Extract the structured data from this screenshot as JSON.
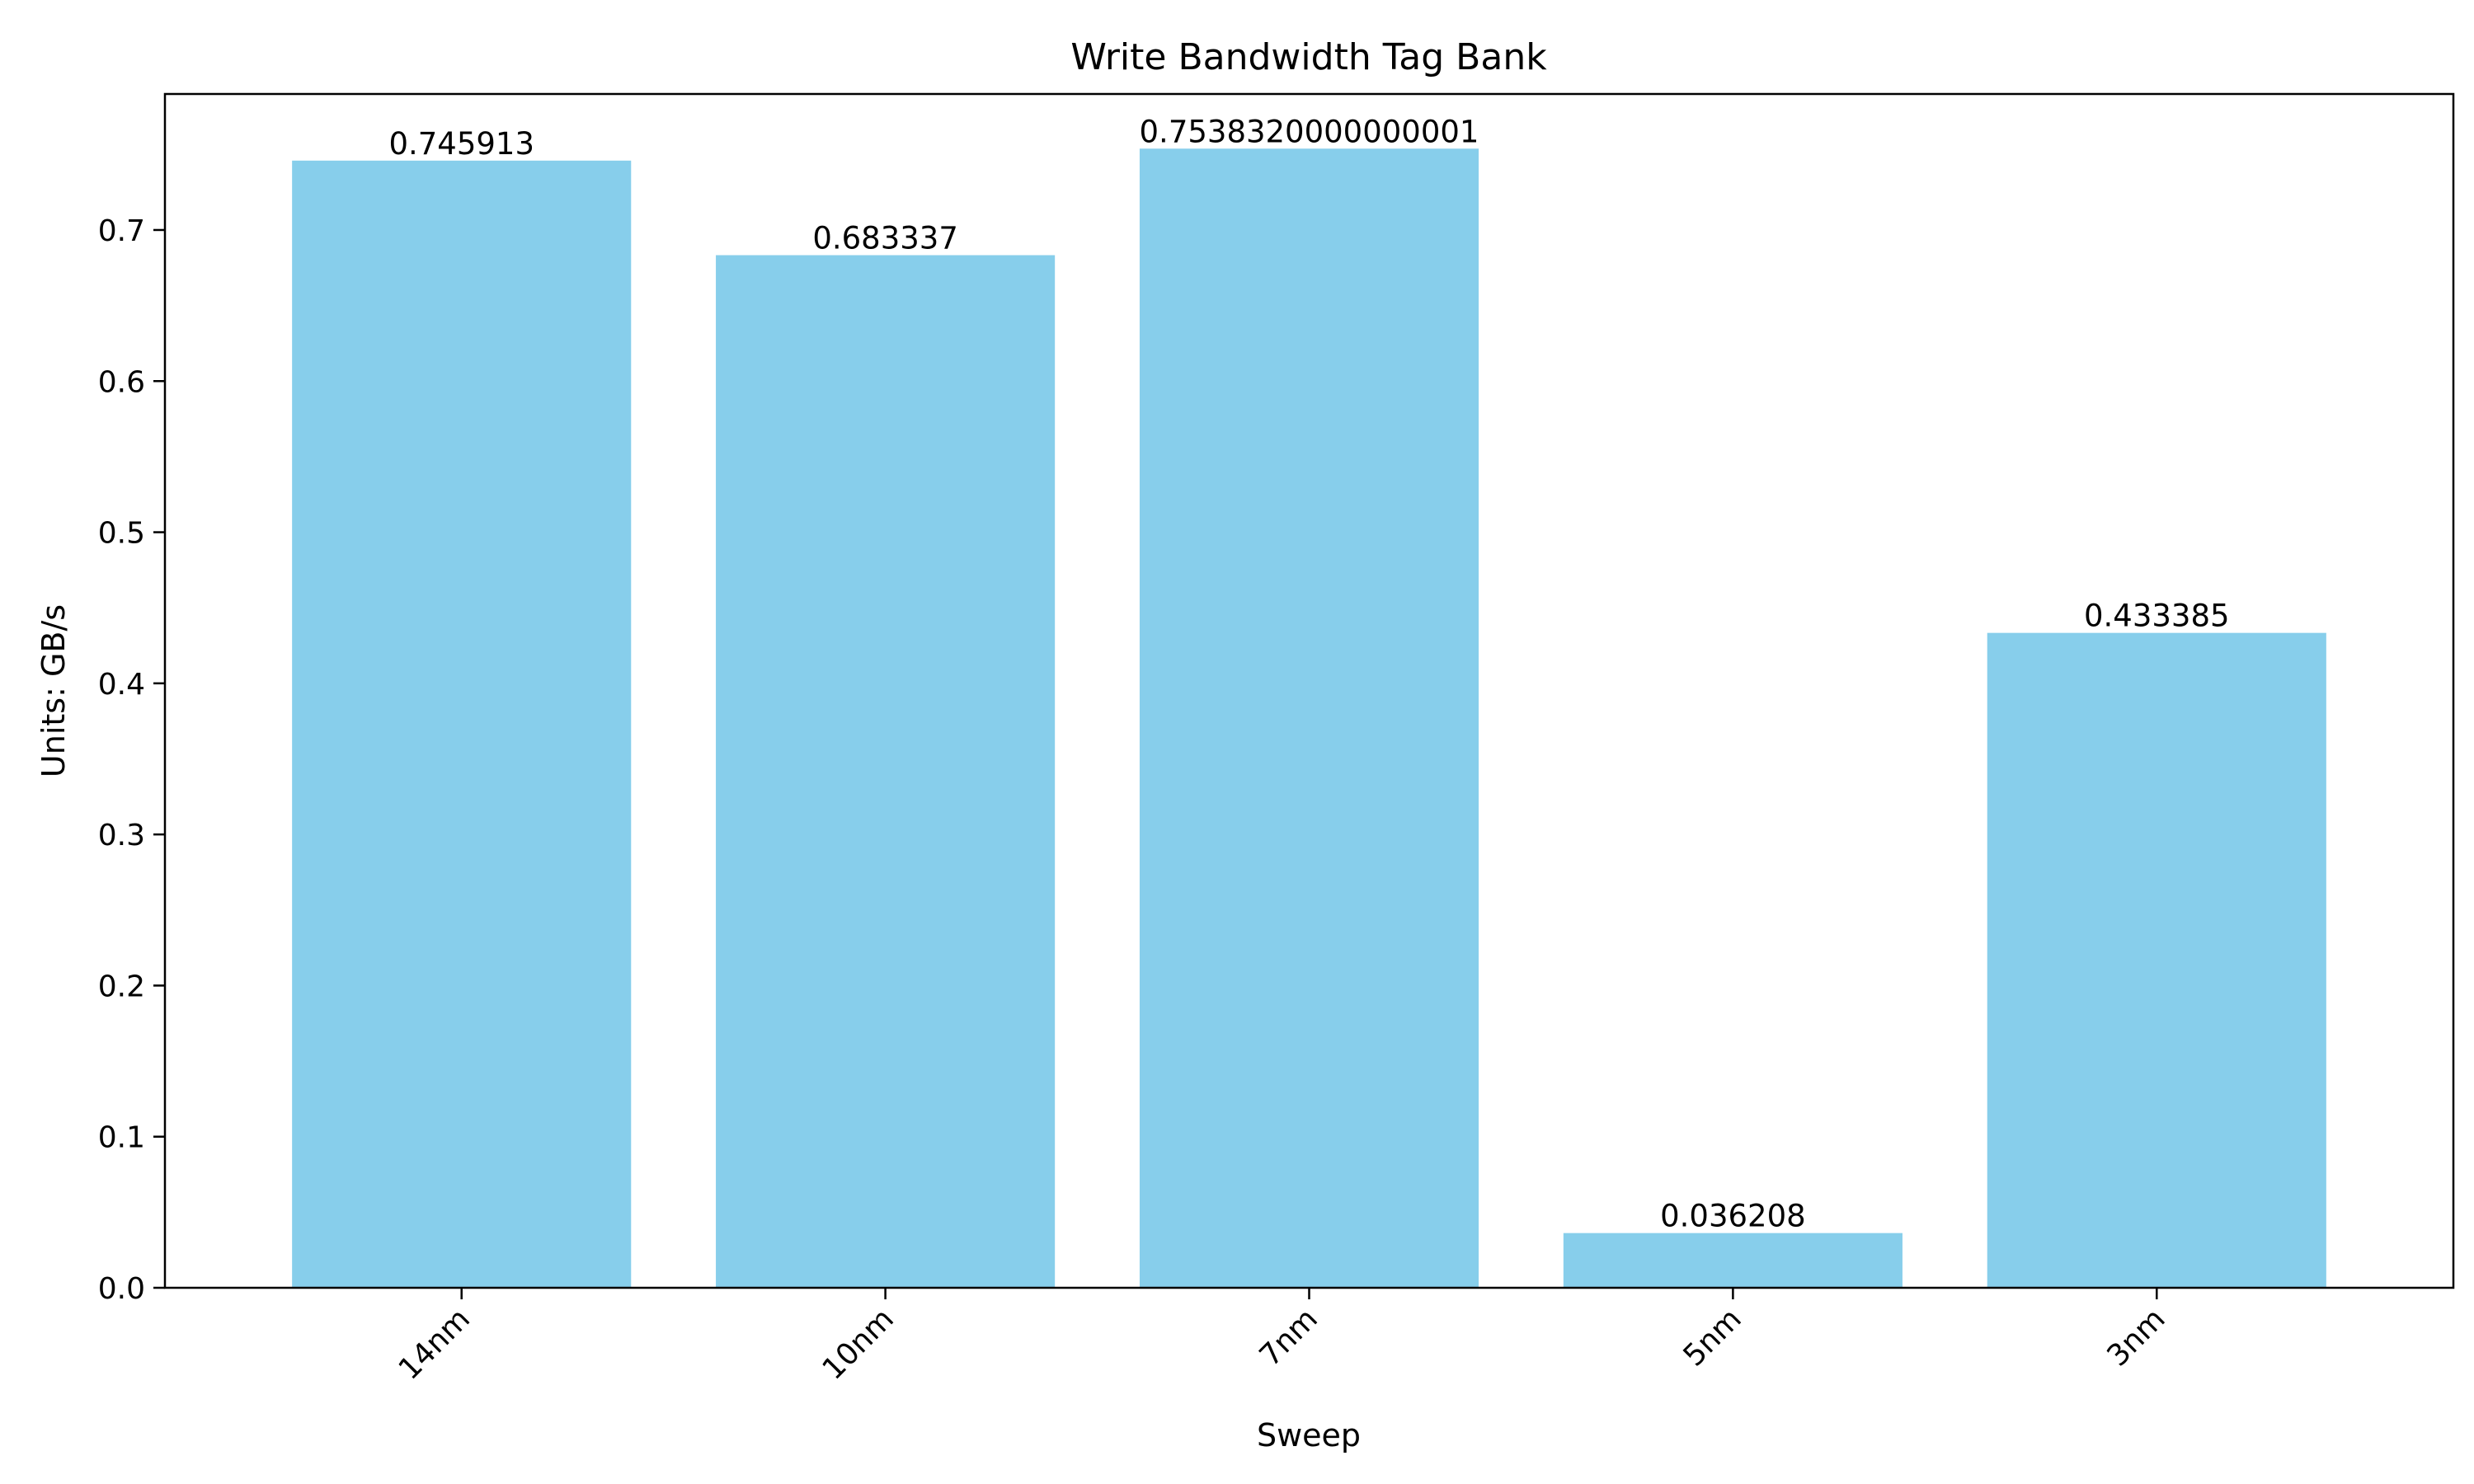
{
  "chart_data": {
    "type": "bar",
    "title": "Write Bandwidth Tag Bank",
    "xlabel": "Sweep",
    "ylabel": "Units: GB/s",
    "categories": [
      "14nm",
      "10nm",
      "7nm",
      "5nm",
      "3nm"
    ],
    "values": [
      0.745913,
      0.683337,
      0.7538320000000001,
      0.036208,
      0.433385
    ],
    "value_labels": [
      "0.745913",
      "0.683337",
      "0.7538320000000001",
      "0.036208",
      "0.433385"
    ],
    "ylim": [
      0,
      0.79
    ],
    "yticks": [
      0.0,
      0.1,
      0.2,
      0.3,
      0.4,
      0.5,
      0.6,
      0.7
    ],
    "ytick_labels": [
      "0.0",
      "0.1",
      "0.2",
      "0.3",
      "0.4",
      "0.5",
      "0.6",
      "0.7"
    ],
    "bar_color": "#87CEEB",
    "grid": false,
    "legend": "none"
  }
}
